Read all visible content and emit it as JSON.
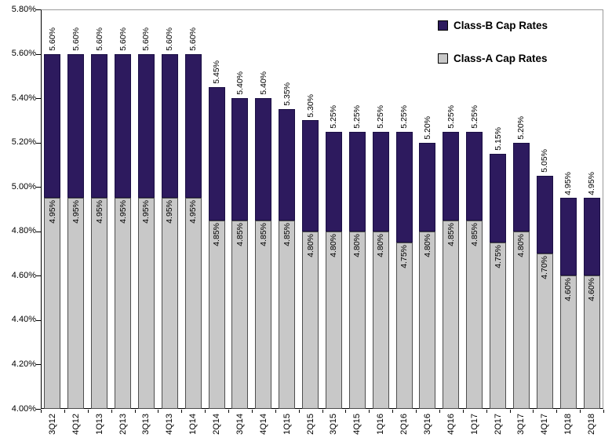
{
  "chart_data": {
    "type": "bar",
    "bar_style": "overlapped-stack",
    "title": "",
    "xlabel": "",
    "ylabel": "",
    "categories": [
      "3Q12",
      "4Q12",
      "1Q13",
      "2Q13",
      "3Q13",
      "4Q13",
      "1Q14",
      "2Q14",
      "3Q14",
      "4Q14",
      "1Q15",
      "2Q15",
      "3Q15",
      "4Q15",
      "1Q16",
      "2Q16",
      "3Q16",
      "4Q16",
      "1Q17",
      "2Q17",
      "3Q17",
      "4Q17",
      "1Q18",
      "2Q18"
    ],
    "series": [
      {
        "name": "Class-B Cap Rates",
        "color": "#2d1a5e",
        "values": [
          5.6,
          5.6,
          5.6,
          5.6,
          5.6,
          5.6,
          5.6,
          5.45,
          5.4,
          5.4,
          5.35,
          5.3,
          5.25,
          5.25,
          5.25,
          5.25,
          5.2,
          5.25,
          5.25,
          5.15,
          5.2,
          5.05,
          4.95,
          4.95
        ]
      },
      {
        "name": "Class-A Cap Rates",
        "color": "#c8c8c8",
        "values": [
          4.95,
          4.95,
          4.95,
          4.95,
          4.95,
          4.95,
          4.95,
          4.85,
          4.85,
          4.85,
          4.85,
          4.8,
          4.8,
          4.8,
          4.8,
          4.75,
          4.8,
          4.85,
          4.85,
          4.75,
          4.8,
          4.7,
          4.6,
          4.6
        ]
      }
    ],
    "ylim": [
      4.0,
      5.8
    ],
    "ytick_step": 0.2,
    "ytick_labels": [
      "5.80%",
      "5.60%",
      "5.40%",
      "5.20%",
      "5.00%",
      "4.80%",
      "4.60%",
      "4.40%",
      "4.20%",
      "4.00%"
    ],
    "value_label_suffix": "%",
    "data_labels": true,
    "grid": false,
    "legend_position": "top-right"
  }
}
